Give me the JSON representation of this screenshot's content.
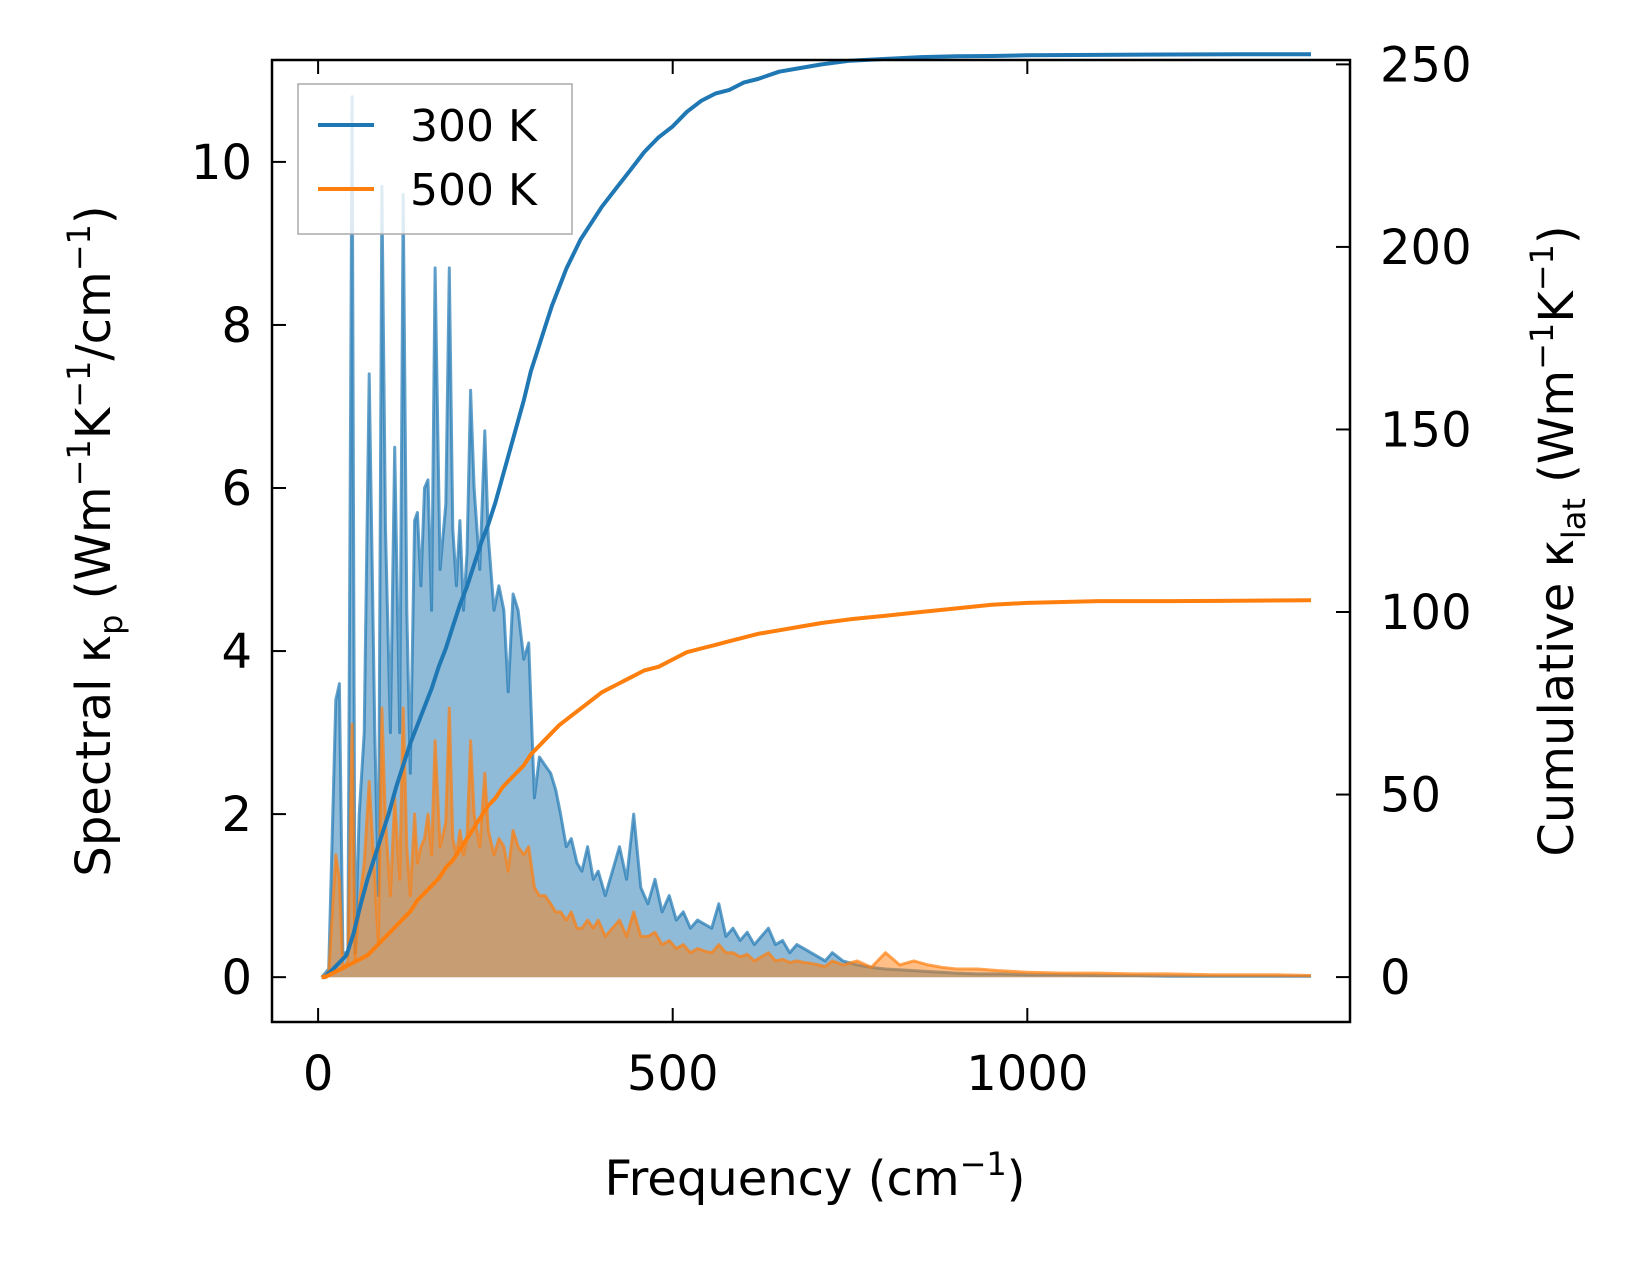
{
  "chart_data": {
    "type": "area",
    "xlabel": "Frequency (cm",
    "xlabel_sup": "−1",
    "xlabel_tail": ")",
    "ylabel_left": {
      "main": "Spectral κ",
      "sub": "p",
      "mid": " (Wm",
      "sup1": "−1",
      "k": "K",
      "sup2": "−1",
      "tail1": "/cm",
      "sup3": "−1",
      "close": ")"
    },
    "ylabel_right": {
      "main": "Cumulative κ",
      "sub": "lat",
      "mid": " (Wm",
      "sup1": "−1",
      "k": "K",
      "sup2": "−1",
      "close": ")"
    },
    "xlim": [
      -65,
      1455
    ],
    "ylim_left": [
      -0.55,
      11.25
    ],
    "ylim_right": [
      -12.3,
      251.2
    ],
    "x_ticks": [
      0,
      500,
      1000
    ],
    "x_tick_labels": [
      "0",
      "500",
      "1000"
    ],
    "yleft_ticks": [
      0,
      2,
      4,
      6,
      8,
      10
    ],
    "yleft_tick_labels": [
      "0",
      "2",
      "4",
      "6",
      "8",
      "10"
    ],
    "yright_ticks": [
      0,
      50,
      100,
      150,
      200,
      250
    ],
    "yright_tick_labels": [
      "0",
      "50",
      "100",
      "150",
      "200",
      "250"
    ],
    "legend": {
      "position": "top-left",
      "entries": [
        "300 K",
        "500 K"
      ]
    },
    "colors": {
      "300 K": "#1f77b4",
      "500 K": "#ff7f0e"
    },
    "series": [
      {
        "name": "300 K",
        "axis": "left",
        "kind": "spectral",
        "x": [
          5,
          15,
          25,
          30,
          35,
          42,
          48,
          52,
          58,
          65,
          72,
          80,
          85,
          90,
          95,
          102,
          108,
          115,
          120,
          125,
          130,
          136,
          140,
          145,
          150,
          155,
          160,
          165,
          172,
          180,
          185,
          190,
          195,
          200,
          205,
          210,
          215,
          220,
          228,
          235,
          240,
          248,
          255,
          262,
          268,
          275,
          282,
          290,
          297,
          305,
          312,
          320,
          328,
          335,
          342,
          350,
          357,
          365,
          372,
          380,
          388,
          395,
          405,
          415,
          425,
          435,
          445,
          455,
          465,
          475,
          485,
          495,
          505,
          515,
          525,
          535,
          545,
          555,
          565,
          575,
          585,
          595,
          605,
          615,
          625,
          635,
          645,
          655,
          665,
          675,
          685,
          695,
          705,
          715,
          725,
          740,
          760,
          780,
          800,
          820,
          840,
          860,
          880,
          900,
          930,
          960,
          1000,
          1050,
          1100,
          1150,
          1200,
          1260,
          1300,
          1350,
          1400
        ],
        "y": [
          0,
          0.1,
          3.4,
          3.6,
          0.3,
          0.3,
          10.8,
          0.3,
          2.0,
          3.0,
          7.4,
          3.0,
          1.0,
          9.7,
          5.5,
          3.0,
          6.5,
          3.0,
          9.6,
          4.5,
          2.5,
          5.6,
          5.7,
          4.8,
          6.0,
          6.1,
          4.5,
          8.7,
          5.0,
          5.8,
          8.7,
          5.5,
          4.8,
          5.6,
          4.5,
          5.2,
          7.2,
          6.0,
          5.0,
          6.7,
          5.4,
          4.5,
          4.8,
          4.5,
          3.5,
          4.7,
          4.5,
          3.9,
          4.1,
          2.2,
          2.7,
          2.6,
          2.5,
          2.3,
          2.0,
          1.6,
          1.7,
          1.4,
          1.3,
          1.6,
          1.2,
          1.3,
          1.0,
          1.3,
          1.6,
          1.2,
          2.0,
          1.1,
          0.9,
          1.2,
          0.8,
          1.0,
          0.7,
          0.8,
          0.6,
          0.7,
          0.65,
          0.6,
          0.9,
          0.5,
          0.6,
          0.45,
          0.55,
          0.4,
          0.5,
          0.6,
          0.4,
          0.45,
          0.3,
          0.4,
          0.35,
          0.3,
          0.25,
          0.2,
          0.3,
          0.2,
          0.15,
          0.12,
          0.1,
          0.09,
          0.08,
          0.07,
          0.06,
          0.05,
          0.04,
          0.04,
          0.03,
          0.03,
          0.02,
          0.02,
          0.01,
          0.01,
          0.01,
          0.01,
          0.01
        ]
      },
      {
        "name": "500 K",
        "axis": "left",
        "kind": "spectral",
        "x": [
          5,
          15,
          25,
          30,
          35,
          42,
          48,
          52,
          58,
          65,
          72,
          80,
          85,
          90,
          95,
          102,
          108,
          115,
          120,
          125,
          130,
          136,
          140,
          145,
          150,
          155,
          160,
          165,
          172,
          180,
          185,
          190,
          195,
          200,
          205,
          210,
          215,
          220,
          228,
          235,
          240,
          248,
          255,
          262,
          268,
          275,
          282,
          290,
          297,
          305,
          312,
          320,
          328,
          335,
          342,
          350,
          357,
          365,
          372,
          380,
          388,
          395,
          405,
          415,
          425,
          435,
          445,
          455,
          465,
          475,
          485,
          495,
          505,
          515,
          525,
          535,
          545,
          555,
          565,
          575,
          585,
          595,
          605,
          615,
          625,
          635,
          645,
          655,
          665,
          675,
          685,
          695,
          705,
          715,
          725,
          740,
          760,
          780,
          800,
          820,
          840,
          860,
          880,
          900,
          930,
          960,
          1000,
          1050,
          1100,
          1150,
          1200,
          1260,
          1300,
          1350,
          1400
        ],
        "y": [
          0,
          0.05,
          1.5,
          1.2,
          0.1,
          0.2,
          3.1,
          0.2,
          0.9,
          1.4,
          2.4,
          1.2,
          0.4,
          3.3,
          1.9,
          1.0,
          2.2,
          1.2,
          3.3,
          1.6,
          1.0,
          2.0,
          1.4,
          1.6,
          1.7,
          2.0,
          1.5,
          2.9,
          1.6,
          1.9,
          3.3,
          1.7,
          1.5,
          1.8,
          1.5,
          1.7,
          2.9,
          2.0,
          1.6,
          2.5,
          1.8,
          1.5,
          1.7,
          1.6,
          1.3,
          1.8,
          1.6,
          1.5,
          1.6,
          1.1,
          1.0,
          1.0,
          0.9,
          0.8,
          0.8,
          0.7,
          0.8,
          0.6,
          0.6,
          0.7,
          0.6,
          0.7,
          0.5,
          0.6,
          0.7,
          0.5,
          0.8,
          0.5,
          0.5,
          0.55,
          0.4,
          0.45,
          0.35,
          0.4,
          0.3,
          0.35,
          0.32,
          0.3,
          0.4,
          0.3,
          0.3,
          0.25,
          0.28,
          0.2,
          0.25,
          0.3,
          0.2,
          0.22,
          0.18,
          0.2,
          0.18,
          0.17,
          0.15,
          0.13,
          0.2,
          0.15,
          0.2,
          0.12,
          0.3,
          0.15,
          0.2,
          0.15,
          0.12,
          0.1,
          0.1,
          0.08,
          0.06,
          0.05,
          0.05,
          0.04,
          0.04,
          0.03,
          0.03,
          0.03,
          0.02
        ]
      },
      {
        "name": "300 K",
        "axis": "right",
        "kind": "cumulative",
        "x": [
          5,
          10,
          20,
          30,
          40,
          50,
          60,
          70,
          80,
          90,
          100,
          110,
          120,
          130,
          140,
          150,
          160,
          170,
          180,
          190,
          200,
          210,
          220,
          230,
          240,
          250,
          260,
          270,
          280,
          290,
          300,
          310,
          320,
          330,
          340,
          350,
          360,
          370,
          380,
          400,
          420,
          440,
          460,
          480,
          500,
          520,
          540,
          560,
          580,
          600,
          620,
          650,
          680,
          710,
          750,
          800,
          850,
          900,
          950,
          1000,
          1100,
          1200,
          1300,
          1400
        ],
        "y": [
          0,
          0,
          2,
          4,
          6,
          12,
          20,
          27,
          33,
          39,
          45,
          52,
          58,
          64,
          69,
          74,
          79,
          85,
          90,
          96,
          102,
          107,
          113,
          119,
          124,
          130,
          137,
          144,
          151,
          158,
          166,
          172,
          178,
          184,
          189,
          194,
          198,
          202,
          205,
          211,
          216,
          221,
          226,
          230,
          233,
          237,
          240,
          242,
          243,
          245,
          246,
          248,
          249,
          250,
          251,
          251.5,
          252,
          252.2,
          252.3,
          252.5,
          252.6,
          252.7,
          252.8,
          252.8
        ]
      },
      {
        "name": "500 K",
        "axis": "right",
        "kind": "cumulative",
        "x": [
          5,
          10,
          20,
          30,
          40,
          50,
          60,
          70,
          80,
          90,
          100,
          110,
          120,
          130,
          140,
          150,
          160,
          170,
          180,
          190,
          200,
          210,
          220,
          230,
          240,
          250,
          260,
          270,
          280,
          290,
          300,
          320,
          340,
          360,
          380,
          400,
          420,
          440,
          460,
          480,
          500,
          520,
          540,
          560,
          580,
          600,
          620,
          650,
          680,
          710,
          750,
          800,
          850,
          900,
          950,
          1000,
          1100,
          1200,
          1300,
          1400
        ],
        "y": [
          0,
          0,
          1,
          2,
          3,
          4,
          5,
          6,
          8,
          10,
          12,
          14,
          16,
          18,
          21,
          23,
          25,
          27,
          30,
          32,
          35,
          38,
          41,
          44,
          47,
          49,
          52,
          54,
          56,
          58,
          61,
          65,
          69,
          72,
          75,
          78,
          80,
          82,
          84,
          85,
          87,
          89,
          90,
          91,
          92,
          93,
          94,
          95,
          96,
          97,
          98,
          99,
          100,
          101,
          102,
          102.5,
          103,
          103,
          103.1,
          103.2
        ]
      }
    ]
  }
}
